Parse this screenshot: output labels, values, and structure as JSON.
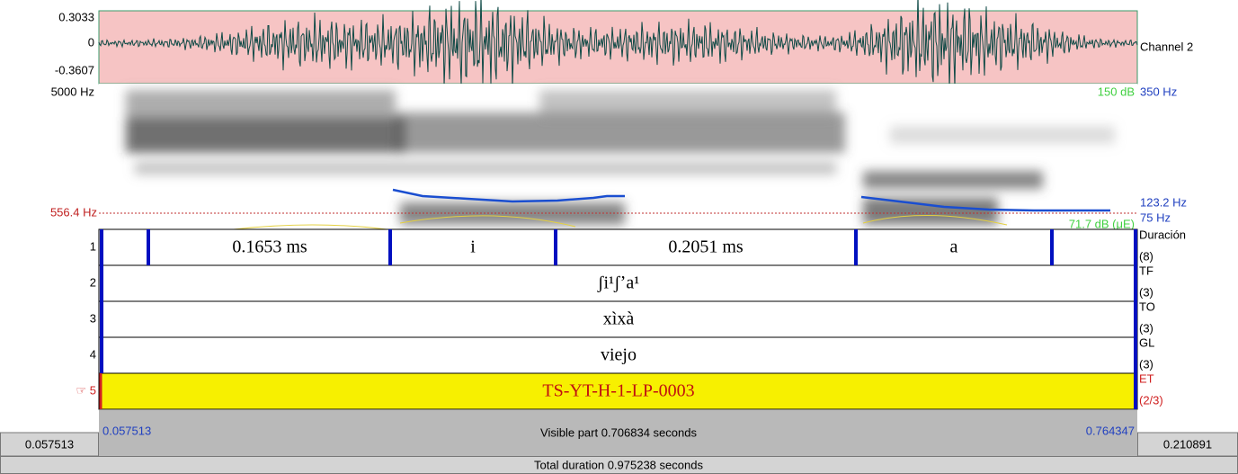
{
  "signal": {
    "waveform": {
      "max_label": "0.3033",
      "zero_label": "0",
      "min_label": "-0.3607",
      "channel": "Channel 2"
    },
    "spectrogram": {
      "top_freq": "5000 Hz",
      "cursor_freq": "556.4 Hz",
      "max_db": "150 dB",
      "pitch_top": "350 Hz",
      "pitch_cursor": "123.2 Hz",
      "pitch_bottom": "75 Hz",
      "min_db": "71.7 dB (μE)"
    }
  },
  "tiers": [
    {
      "number": "1",
      "name": "Duración",
      "count": "(8)",
      "intervals": [
        "0.1653 ms",
        "i",
        "0.2051 ms",
        "a"
      ]
    },
    {
      "number": "2",
      "name": "TF",
      "count": "(3)",
      "intervals": [
        "ʃi¹ʃʼa¹"
      ]
    },
    {
      "number": "3",
      "name": "TO",
      "count": "(3)",
      "intervals": [
        "xìxà"
      ]
    },
    {
      "number": "4",
      "name": "GL",
      "count": "(3)",
      "intervals": [
        "viejo"
      ]
    },
    {
      "number": "☞ 5",
      "name": "ET",
      "count": "(2/3)",
      "intervals": [
        "TS-YT-H-1-LP-0003"
      ]
    }
  ],
  "time_bar": {
    "visible_start": "0.057513",
    "visible_part": "Visible part 0.706834 seconds",
    "visible_end": "0.764347",
    "window_start": "0.057513",
    "window_end": "0.210891",
    "total": "Total duration 0.975238 seconds"
  }
}
